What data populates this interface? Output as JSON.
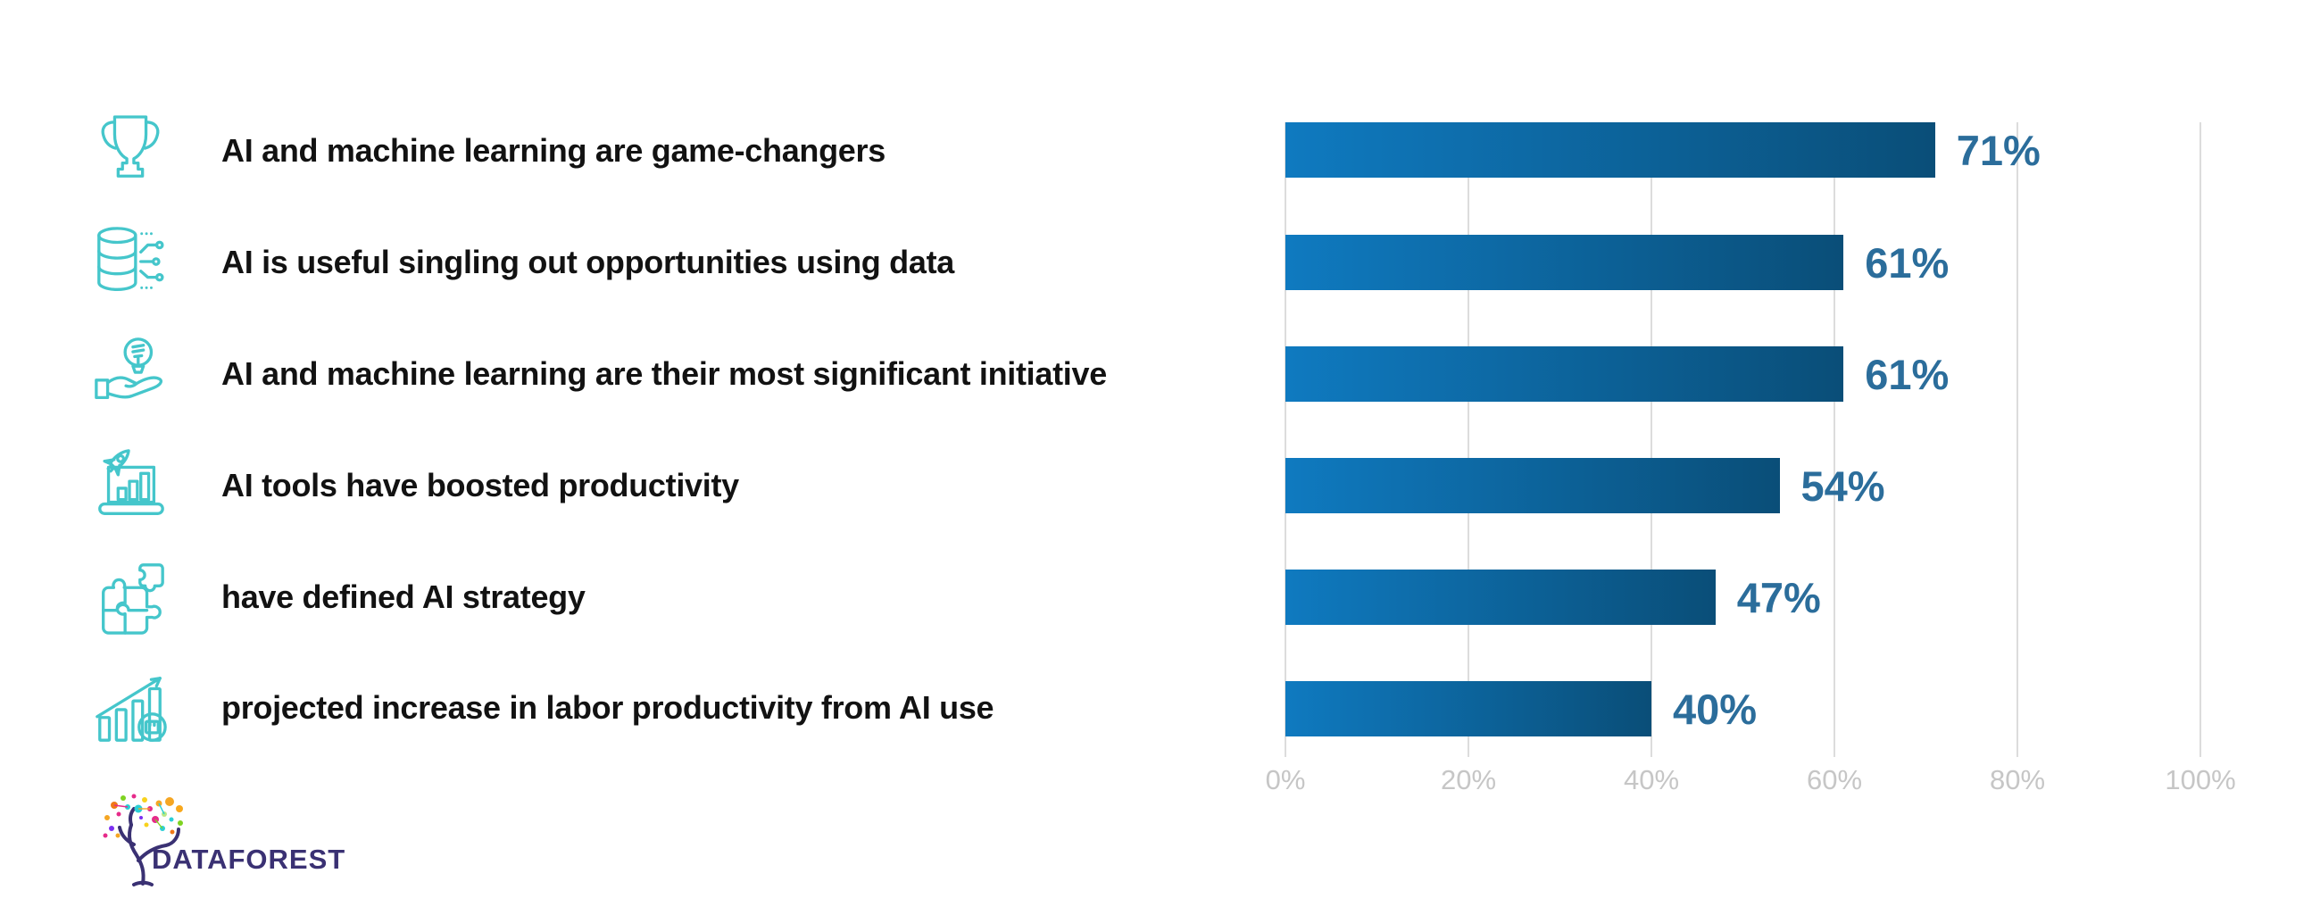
{
  "rows": [
    {
      "icon": "trophy-icon",
      "label": "AI and machine learning are game-changers"
    },
    {
      "icon": "database-circuit-icon",
      "label": "AI is useful singling out opportunities using data"
    },
    {
      "icon": "hand-lightbulb-icon",
      "label": "AI and machine learning are their most significant initiative"
    },
    {
      "icon": "laptop-rocket-icon",
      "label": "AI tools have boosted productivity"
    },
    {
      "icon": "puzzle-icon",
      "label": "have defined AI strategy"
    },
    {
      "icon": "growth-chart-icon",
      "label": "projected increase in labor productivity from AI use"
    }
  ],
  "chart_data": {
    "type": "bar",
    "orientation": "horizontal",
    "categories": [
      "AI and machine learning are game-changers",
      "AI is useful singling out opportunities using data",
      "AI and machine learning are their most significant initiative",
      "AI tools have boosted productivity",
      "have defined AI strategy",
      "projected increase in labor productivity from AI use"
    ],
    "values": [
      71,
      61,
      61,
      54,
      47,
      40
    ],
    "value_labels": [
      "71%",
      "61%",
      "61%",
      "54%",
      "47%",
      "40%"
    ],
    "x_ticks": [
      "0%",
      "20%",
      "40%",
      "60%",
      "80%",
      "100%"
    ],
    "xlim": [
      0,
      100
    ],
    "grid": true,
    "title": "",
    "xlabel": "",
    "ylabel": "",
    "bar_gradient": [
      "#0F7AC0",
      "#0A4E78"
    ]
  },
  "colors": {
    "icon_teal": "#45C6CB",
    "label_text": "#121212",
    "value_label": "#2B6D9B",
    "axis_label": "#C6C6C6",
    "gridline": "#DCDCDC",
    "logo_indigo": "#3A3173"
  },
  "logo": {
    "brand": "DATAFOREST"
  }
}
